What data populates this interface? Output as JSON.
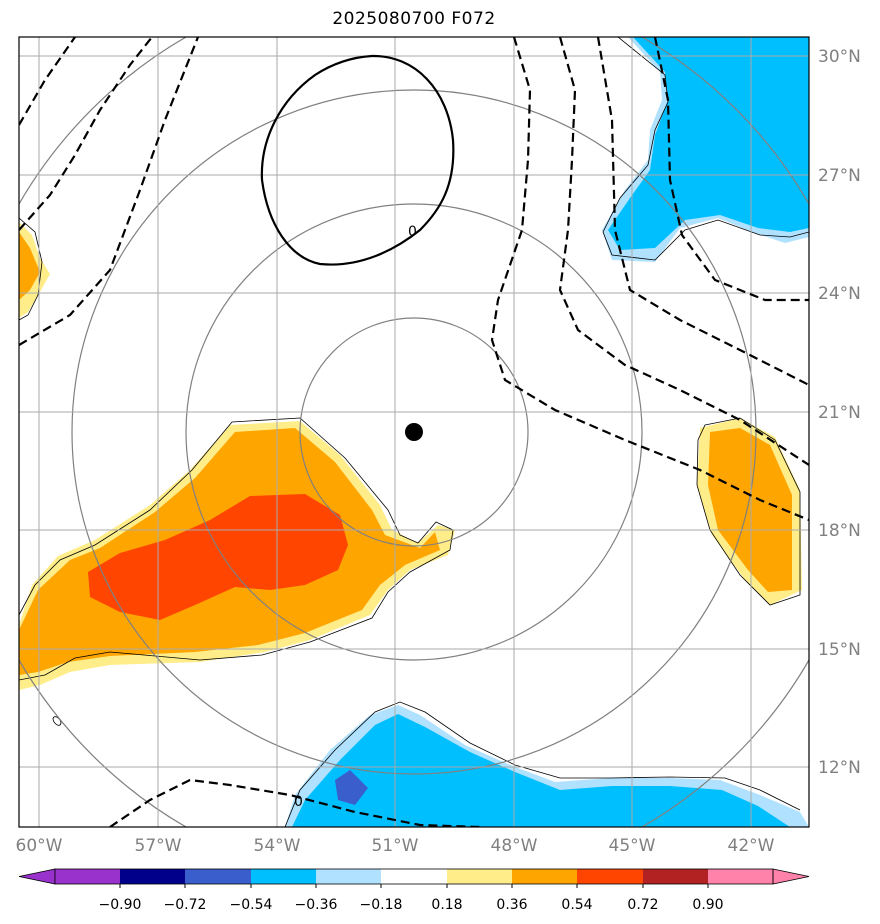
{
  "title": "2025080700 F072",
  "map": {
    "lat_labels": [
      "30°N",
      "27°N",
      "24°N",
      "21°N",
      "18°N",
      "15°N",
      "12°N"
    ],
    "lon_labels": [
      "60°W",
      "57°W",
      "54°W",
      "51°W",
      "48°W",
      "45°W",
      "42°W"
    ],
    "contour_label": "0",
    "colors": {
      "pos_light": "#ffed8a",
      "pos_mid": "#ffa500",
      "pos_strong": "#ff4500",
      "neg_light": "#b0e2ff",
      "neg_mid": "#00bfff",
      "neg_strong": "#3a5fcd",
      "grid": "#aaaaaa",
      "range_ring": "#808080"
    }
  },
  "colorbar": {
    "tick_labels": [
      "−0.90",
      "−0.72",
      "−0.54",
      "−0.36",
      "−0.18",
      "0.18",
      "0.36",
      "0.54",
      "0.72",
      "0.90"
    ],
    "colors": [
      "#9932cc",
      "#00008b",
      "#3a5fcd",
      "#00bfff",
      "#b0e2ff",
      "#ffffff",
      "#ffed8a",
      "#ffa500",
      "#ff4500",
      "#b22222",
      "#ff82ab",
      "#ff82ab"
    ]
  }
}
